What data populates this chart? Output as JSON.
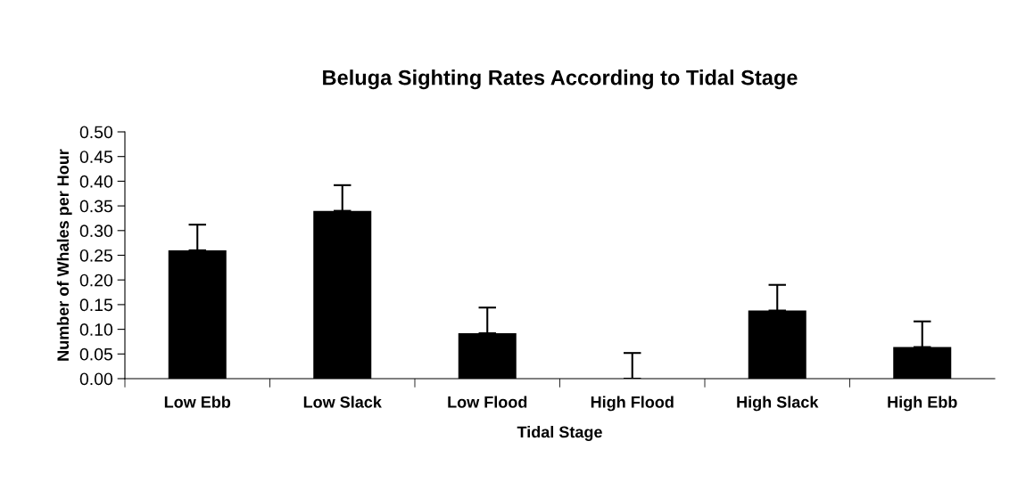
{
  "chart_data": {
    "type": "bar",
    "title": "Beluga Sighting Rates According to Tidal Stage",
    "xlabel": "Tidal Stage",
    "ylabel": "Number of Whales per Hour",
    "categories": [
      "Low Ebb",
      "Low Slack",
      "Low Flood",
      "High Flood",
      "High Slack",
      "High Ebb"
    ],
    "values": [
      0.26,
      0.34,
      0.092,
      0,
      0.138,
      0.064
    ],
    "errors": [
      [
        0.26,
        0.312
      ],
      [
        0.34,
        0.392
      ],
      [
        0.092,
        0.144
      ],
      [
        0,
        0.052
      ],
      [
        0.138,
        0.19
      ],
      [
        0.064,
        0.116
      ]
    ],
    "color": "#000000",
    "ylim": [
      0,
      0.5
    ],
    "yticks": [
      {
        "value": 0,
        "label": "0.00"
      },
      {
        "value": 0.05,
        "label": "0.05"
      },
      {
        "value": 0.1,
        "label": "0.10"
      },
      {
        "value": 0.15,
        "label": "0.15"
      },
      {
        "value": 0.2,
        "label": "0.20"
      },
      {
        "value": 0.25,
        "label": "0.25"
      },
      {
        "value": 0.3,
        "label": "0.30"
      },
      {
        "value": 0.35,
        "label": "0.35"
      },
      {
        "value": 0.4,
        "label": "0.40"
      },
      {
        "value": 0.45,
        "label": "0.45"
      },
      {
        "value": 0.5,
        "label": "0.50"
      }
    ],
    "grid": false,
    "legend": false
  }
}
